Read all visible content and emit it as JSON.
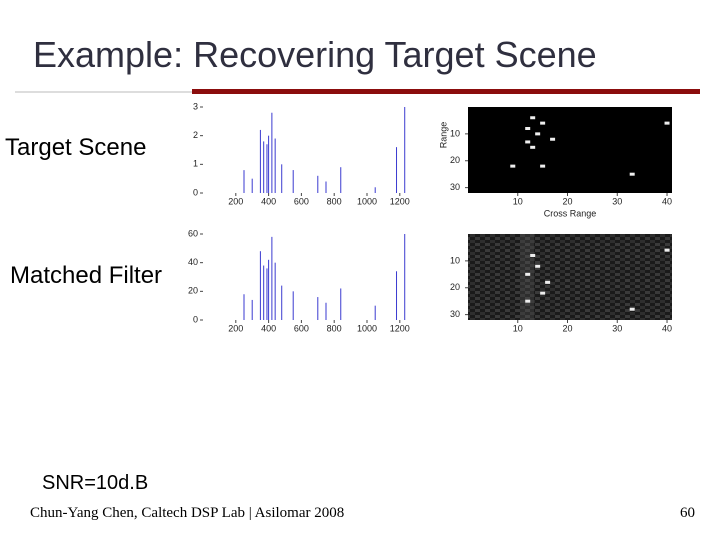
{
  "slide": {
    "title": "Example: Recovering Target Scene",
    "labels": [
      "Target Scene",
      "Matched Filter"
    ],
    "snr": "SNR=10d.B",
    "footer": {
      "text": "Chun-Yang Chen, Caltech DSP Lab | Asilomar 2008",
      "page": "60"
    }
  },
  "chart_data": [
    {
      "type": "stem",
      "color": "#3a3ad0",
      "xlim": [
        0,
        1250
      ],
      "ylim": [
        0,
        3
      ],
      "xticks": [
        200,
        400,
        600,
        800,
        1000,
        1200
      ],
      "yticks": [
        0,
        1,
        2,
        3
      ],
      "x": [
        250,
        300,
        350,
        370,
        390,
        400,
        420,
        440,
        480,
        550,
        700,
        750,
        840,
        1050,
        1180,
        1230
      ],
      "values": [
        0.8,
        0.5,
        2.2,
        1.8,
        1.7,
        2.0,
        2.8,
        1.9,
        1.0,
        0.8,
        0.6,
        0.4,
        0.9,
        0.2,
        1.6,
        3.0
      ]
    },
    {
      "type": "stem",
      "color": "#3a3ad0",
      "xlim": [
        0,
        1250
      ],
      "ylim": [
        0,
        60
      ],
      "xticks": [
        200,
        400,
        600,
        800,
        1000,
        1200
      ],
      "yticks": [
        0,
        20,
        40,
        60
      ],
      "x": [
        250,
        300,
        350,
        370,
        390,
        400,
        420,
        440,
        480,
        550,
        700,
        750,
        840,
        1050,
        1180,
        1230
      ],
      "values": [
        18,
        14,
        48,
        38,
        36,
        42,
        58,
        40,
        24,
        20,
        16,
        12,
        22,
        10,
        34,
        60
      ]
    },
    {
      "type": "image",
      "xlabel": "Cross Range",
      "ylabel": "Range",
      "xlim": [
        0,
        41
      ],
      "ylim": [
        0,
        32
      ],
      "xticks": [
        10,
        20,
        30,
        40
      ],
      "yticks": [
        10,
        20,
        30
      ],
      "x": [
        13,
        15,
        12,
        14,
        17,
        12,
        13,
        9,
        15,
        33,
        40
      ],
      "values": [
        4,
        6,
        8,
        10,
        12,
        13,
        15,
        22,
        22,
        25,
        6
      ]
    },
    {
      "type": "image",
      "xlim": [
        0,
        41
      ],
      "ylim": [
        0,
        32
      ],
      "xticks": [
        10,
        20,
        30,
        40
      ],
      "yticks": [
        10,
        20,
        30
      ],
      "x": [
        13,
        14,
        12,
        16,
        15,
        40,
        12,
        33
      ],
      "values": [
        8,
        12,
        15,
        18,
        22,
        6,
        25,
        28
      ]
    }
  ]
}
